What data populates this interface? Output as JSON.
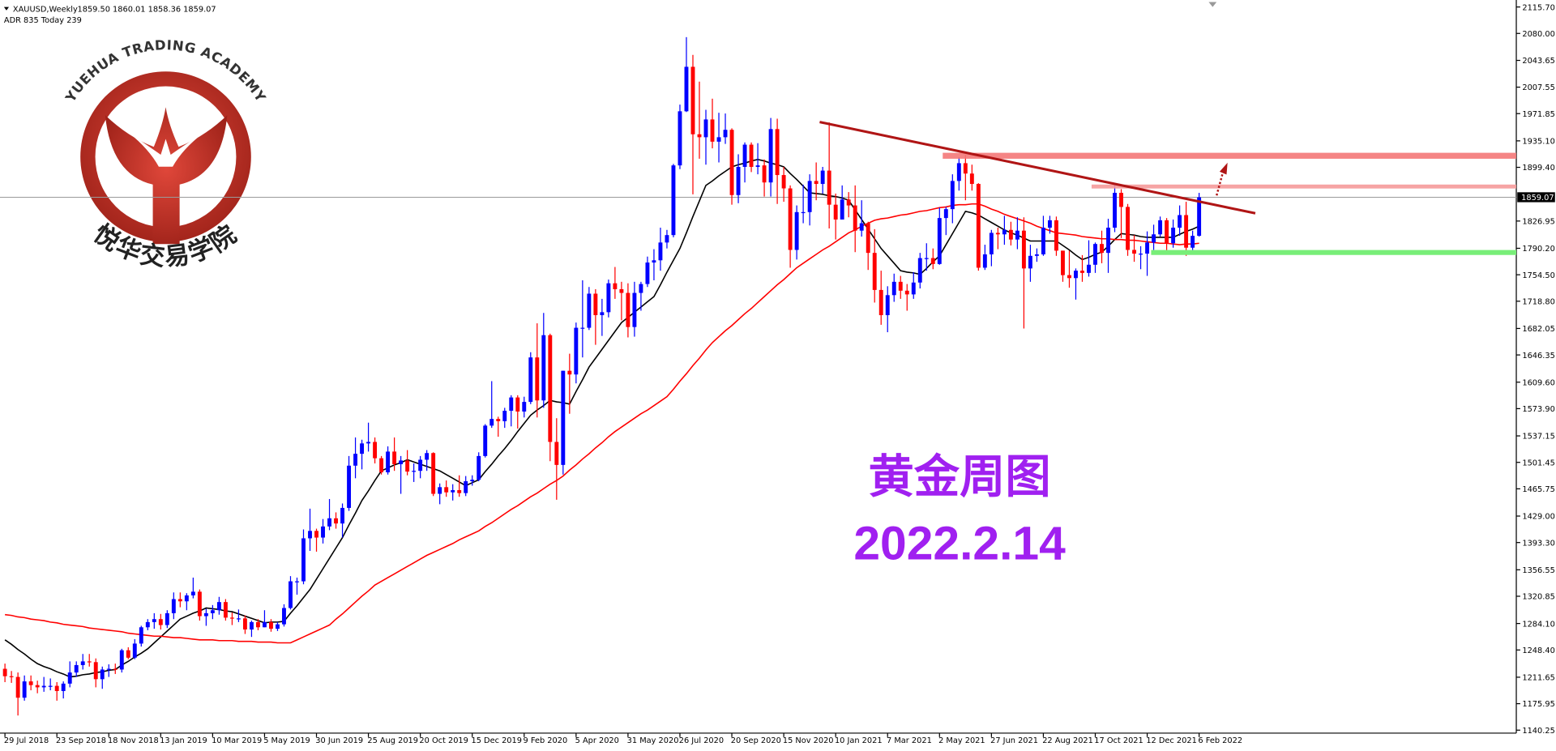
{
  "chart_data": {
    "type": "candlestick",
    "symbol": "XAUUSD,Weekly",
    "header_values": "1859.50 1860.01 1858.36 1859.07",
    "indicator_text": "ADR 835  Today 239",
    "title": "黄金周图",
    "subtitle": "2022.2.14",
    "up_color": "#0000ff",
    "down_color": "#ff0000",
    "last_price": 1859.07,
    "ylim": [
      1140.25,
      2115.7
    ],
    "yticks": [
      {
        "value": 2115.7,
        "label": "2115.70"
      },
      {
        "value": 2080,
        "label": "2080.00"
      },
      2043.65,
      2007.55,
      1971.85,
      {
        "value": 1935.1,
        "label": "1935.10"
      },
      {
        "value": 1899.4,
        "label": "1899.40"
      },
      1826.95,
      {
        "value": 1790.2,
        "label": "1790.20"
      },
      {
        "value": 1754.5,
        "label": "1754.50"
      },
      {
        "value": 1718.8,
        "label": "1718.80"
      },
      1682.05,
      1646.35,
      {
        "value": 1609.6,
        "label": "1609.60"
      },
      {
        "value": 1573.9,
        "label": "1573.90"
      },
      1537.15,
      1501.45,
      1465.75,
      {
        "value": 1429,
        "label": "1429.00"
      },
      {
        "value": 1393.3,
        "label": "1393.30"
      },
      1356.55,
      1320.85,
      {
        "value": 1284.1,
        "label": "1284.10"
      },
      {
        "value": 1248.4,
        "label": "1248.40"
      },
      1211.65,
      1175.95,
      1140.25
    ],
    "categories": [
      "29 Jul 2018",
      null,
      null,
      null,
      null,
      null,
      null,
      null,
      "23 Sep 2018",
      null,
      null,
      null,
      null,
      null,
      null,
      null,
      "18 Nov 2018",
      null,
      null,
      null,
      null,
      null,
      null,
      null,
      "13 Jan 2019",
      null,
      null,
      null,
      null,
      null,
      null,
      null,
      "10 Mar 2019",
      null,
      null,
      null,
      null,
      null,
      null,
      null,
      "5 May 2019",
      null,
      null,
      null,
      null,
      null,
      null,
      null,
      "30 Jun 2019",
      null,
      null,
      null,
      null,
      null,
      null,
      null,
      "25 Aug 2019",
      null,
      null,
      null,
      null,
      null,
      null,
      null,
      "20 Oct 2019",
      null,
      null,
      null,
      null,
      null,
      null,
      null,
      "15 Dec 2019",
      null,
      null,
      null,
      null,
      null,
      null,
      null,
      "9 Feb 2020",
      null,
      null,
      null,
      null,
      null,
      null,
      null,
      "5 Apr 2020",
      null,
      null,
      null,
      null,
      null,
      null,
      null,
      "31 May 2020",
      null,
      null,
      null,
      null,
      null,
      null,
      null,
      "26 Jul 2020",
      null,
      null,
      null,
      null,
      null,
      null,
      null,
      "20 Sep 2020",
      null,
      null,
      null,
      null,
      null,
      null,
      null,
      "15 Nov 2020",
      null,
      null,
      null,
      null,
      null,
      null,
      null,
      "10 Jan 2021",
      null,
      null,
      null,
      null,
      null,
      null,
      null,
      "7 Mar 2021",
      null,
      null,
      null,
      null,
      null,
      null,
      null,
      "2 May 2021",
      null,
      null,
      null,
      null,
      null,
      null,
      null,
      "27 Jun 2021",
      null,
      null,
      null,
      null,
      null,
      null,
      null,
      "22 Aug 2021",
      null,
      null,
      null,
      null,
      null,
      null,
      null,
      "17 Oct 2021",
      null,
      null,
      null,
      null,
      null,
      null,
      null,
      "12 Dec 2021",
      null,
      null,
      null,
      null,
      null,
      null,
      null,
      "6 Feb 2022"
    ],
    "open": [
      1223,
      1213,
      1212,
      1184,
      1206,
      1201,
      1198,
      1200,
      1200,
      1193,
      1203,
      1218,
      1228,
      1233,
      1232,
      1209,
      1222,
      1223,
      1222,
      1248,
      1238,
      1257,
      1279,
      1286,
      1290,
      1282,
      1298,
      1317,
      1314,
      1322,
      1327,
      1294,
      1298,
      1302,
      1313,
      1292,
      1291,
      1291,
      1276,
      1286,
      1279,
      1286,
      1277,
      1283,
      1305,
      1341,
      1341,
      1399,
      1409,
      1400,
      1415,
      1426,
      1419,
      1440,
      1497,
      1513,
      1527,
      1529,
      1507,
      1488,
      1516,
      1499,
      1504,
      1489,
      1490,
      1505,
      1514,
      1459,
      1468,
      1461,
      1464,
      1460,
      1476,
      1478,
      1510,
      1551,
      1560,
      1557,
      1571,
      1589,
      1570,
      1583,
      1643,
      1585,
      1673,
      1529,
      1498,
      1625,
      1620,
      1683,
      1683,
      1729,
      1700,
      1704,
      1743,
      1735,
      1730,
      1684,
      1730,
      1742,
      1771,
      1774,
      1798,
      1808,
      1902,
      1975,
      2035,
      1944,
      1940,
      1964,
      1934,
      1940,
      1950,
      1862,
      1900,
      1930,
      1900,
      1902,
      1879,
      1951,
      1889,
      1871,
      1788,
      1839,
      1839,
      1881,
      1877,
      1895,
      1849,
      1829,
      1856,
      1848,
      1814,
      1824,
      1784,
      1734,
      1700,
      1727,
      1745,
      1733,
      1728,
      1744,
      1777,
      1777,
      1769,
      1831,
      1843,
      1881,
      1905,
      1891,
      1877,
      1764,
      1782,
      1811,
      1809,
      1815,
      1802,
      1814,
      1763,
      1780,
      1782,
      1818,
      1828,
      1787,
      1754,
      1750,
      1760,
      1757,
      1768,
      1796,
      1784,
      1818,
      1865,
      1846,
      1788,
      1783,
      1783,
      1798,
      1809,
      1828,
      1797,
      1818,
      1835,
      1791,
      1807
    ],
    "high": [
      1230,
      1220,
      1218,
      1214,
      1214,
      1207,
      1212,
      1210,
      1205,
      1206,
      1233,
      1233,
      1243,
      1243,
      1237,
      1226,
      1229,
      1230,
      1250,
      1252,
      1263,
      1281,
      1290,
      1298,
      1297,
      1302,
      1326,
      1326,
      1325,
      1346,
      1330,
      1304,
      1309,
      1320,
      1317,
      1299,
      1303,
      1295,
      1288,
      1290,
      1302,
      1290,
      1286,
      1310,
      1348,
      1346,
      1411,
      1439,
      1412,
      1425,
      1452,
      1434,
      1446,
      1510,
      1535,
      1532,
      1555,
      1535,
      1510,
      1523,
      1535,
      1510,
      1518,
      1500,
      1510,
      1518,
      1515,
      1473,
      1477,
      1472,
      1484,
      1483,
      1484,
      1515,
      1553,
      1611,
      1563,
      1575,
      1592,
      1592,
      1590,
      1650,
      1689,
      1703,
      1675,
      1561,
      1625,
      1648,
      1690,
      1747,
      1738,
      1735,
      1722,
      1748,
      1765,
      1745,
      1743,
      1745,
      1745,
      1779,
      1789,
      1818,
      1815,
      1904,
      1984,
      2075,
      2051,
      2015,
      1977,
      1992,
      1973,
      1972,
      1952,
      1917,
      1933,
      1933,
      1932,
      1910,
      1966,
      1965,
      1900,
      1875,
      1848,
      1876,
      1890,
      1906,
      1900,
      1960,
      1864,
      1875,
      1866,
      1875,
      1855,
      1826,
      1816,
      1760,
      1739,
      1756,
      1753,
      1742,
      1758,
      1784,
      1797,
      1790,
      1845,
      1846,
      1890,
      1913,
      1916,
      1903,
      1878,
      1795,
      1815,
      1818,
      1834,
      1826,
      1832,
      1832,
      1795,
      1790,
      1834,
      1834,
      1833,
      1787,
      1787,
      1763,
      1781,
      1801,
      1798,
      1814,
      1830,
      1877,
      1870,
      1850,
      1808,
      1793,
      1813,
      1822,
      1833,
      1831,
      1829,
      1848,
      1853,
      1814,
      1865
    ],
    "low": [
      1205,
      1204,
      1160,
      1180,
      1194,
      1190,
      1192,
      1194,
      1180,
      1183,
      1198,
      1212,
      1222,
      1226,
      1198,
      1196,
      1212,
      1216,
      1218,
      1236,
      1236,
      1253,
      1275,
      1277,
      1276,
      1278,
      1290,
      1306,
      1302,
      1318,
      1288,
      1281,
      1290,
      1296,
      1288,
      1282,
      1286,
      1270,
      1266,
      1275,
      1279,
      1273,
      1274,
      1280,
      1303,
      1323,
      1337,
      1382,
      1381,
      1392,
      1410,
      1412,
      1400,
      1436,
      1480,
      1492,
      1516,
      1500,
      1485,
      1485,
      1490,
      1459,
      1484,
      1475,
      1480,
      1490,
      1456,
      1445,
      1455,
      1450,
      1455,
      1456,
      1470,
      1476,
      1508,
      1548,
      1536,
      1548,
      1550,
      1547,
      1562,
      1580,
      1562,
      1575,
      1503,
      1451,
      1485,
      1567,
      1608,
      1643,
      1680,
      1660,
      1672,
      1697,
      1722,
      1693,
      1670,
      1671,
      1706,
      1738,
      1747,
      1760,
      1790,
      1805,
      1897,
      1974,
      1863,
      1911,
      1903,
      1925,
      1906,
      1931,
      1849,
      1851,
      1879,
      1893,
      1890,
      1860,
      1860,
      1850,
      1853,
      1764,
      1775,
      1824,
      1821,
      1855,
      1864,
      1817,
      1802,
      1832,
      1832,
      1785,
      1806,
      1761,
      1717,
      1687,
      1677,
      1718,
      1722,
      1706,
      1722,
      1736,
      1760,
      1762,
      1768,
      1808,
      1824,
      1868,
      1855,
      1868,
      1760,
      1761,
      1766,
      1789,
      1795,
      1794,
      1789,
      1682,
      1745,
      1772,
      1780,
      1810,
      1780,
      1745,
      1737,
      1721,
      1745,
      1752,
      1757,
      1770,
      1757,
      1812,
      1804,
      1780,
      1772,
      1762,
      1753,
      1788,
      1806,
      1782,
      1791,
      1807,
      1780,
      1788,
      1806
    ],
    "close": [
      1213,
      1212,
      1184,
      1206,
      1201,
      1198,
      1200,
      1200,
      1193,
      1203,
      1218,
      1228,
      1233,
      1232,
      1209,
      1222,
      1223,
      1222,
      1248,
      1238,
      1257,
      1279,
      1286,
      1290,
      1282,
      1298,
      1317,
      1314,
      1322,
      1327,
      1294,
      1298,
      1302,
      1313,
      1292,
      1291,
      1291,
      1276,
      1286,
      1279,
      1286,
      1277,
      1283,
      1305,
      1341,
      1341,
      1399,
      1409,
      1400,
      1415,
      1426,
      1419,
      1440,
      1497,
      1513,
      1527,
      1529,
      1507,
      1488,
      1516,
      1499,
      1504,
      1489,
      1490,
      1505,
      1514,
      1459,
      1468,
      1461,
      1464,
      1460,
      1476,
      1478,
      1510,
      1551,
      1560,
      1557,
      1571,
      1589,
      1570,
      1583,
      1643,
      1585,
      1673,
      1529,
      1498,
      1625,
      1620,
      1683,
      1683,
      1729,
      1700,
      1704,
      1743,
      1735,
      1730,
      1684,
      1730,
      1742,
      1771,
      1774,
      1798,
      1808,
      1902,
      1975,
      2035,
      1944,
      1940,
      1964,
      1934,
      1940,
      1950,
      1862,
      1900,
      1930,
      1900,
      1902,
      1879,
      1951,
      1889,
      1871,
      1788,
      1839,
      1839,
      1881,
      1877,
      1895,
      1849,
      1829,
      1856,
      1848,
      1814,
      1824,
      1784,
      1734,
      1700,
      1727,
      1745,
      1733,
      1728,
      1744,
      1777,
      1777,
      1769,
      1831,
      1843,
      1881,
      1905,
      1891,
      1877,
      1764,
      1782,
      1811,
      1809,
      1815,
      1802,
      1814,
      1763,
      1780,
      1782,
      1818,
      1828,
      1787,
      1754,
      1750,
      1760,
      1757,
      1768,
      1796,
      1784,
      1818,
      1865,
      1846,
      1788,
      1783,
      1783,
      1798,
      1809,
      1828,
      1797,
      1818,
      1835,
      1791,
      1807,
      1859
    ],
    "overlays": [
      {
        "color": "#000000",
        "values": [
          1262,
          1256,
          1249,
          1243,
          1236,
          1230,
          1226,
          1223,
          1219,
          1216,
          1212,
          1213,
          1215,
          1216,
          1218,
          1219,
          1221,
          1222,
          1228,
          1233,
          1239,
          1244,
          1250,
          1258,
          1266,
          1274,
          1282,
          1290,
          1294,
          1298,
          1301,
          1305,
          1304,
          1303,
          1301,
          1300,
          1297,
          1294,
          1291,
          1288,
          1285,
          1286,
          1286,
          1287,
          1298,
          1308,
          1319,
          1330,
          1344,
          1358,
          1372,
          1386,
          1400,
          1417,
          1433,
          1450,
          1463,
          1477,
          1490,
          1494,
          1498,
          1501,
          1505,
          1502,
          1499,
          1496,
          1493,
          1490,
          1485,
          1480,
          1475,
          1470,
          1474,
          1478,
          1489,
          1499,
          1510,
          1520,
          1531,
          1543,
          1554,
          1565,
          1572,
          1578,
          1585,
          1583,
          1582,
          1580,
          1597,
          1613,
          1630,
          1642,
          1654,
          1666,
          1678,
          1690,
          1697,
          1704,
          1711,
          1718,
          1725,
          1741,
          1758,
          1774,
          1790,
          1811,
          1833,
          1854,
          1875,
          1881,
          1888,
          1894,
          1900,
          1903,
          1905,
          1908,
          1910,
          1908,
          1905,
          1903,
          1900,
          1891,
          1883,
          1874,
          1865,
          1864,
          1863,
          1861,
          1860,
          1858,
          1855,
          1842,
          1829,
          1816,
          1803,
          1790,
          1780,
          1770,
          1760,
          1758,
          1757,
          1755,
          1763,
          1772,
          1780,
          1795,
          1810,
          1825,
          1840,
          1838,
          1835,
          1830,
          1825,
          1820,
          1815,
          1811,
          1808,
          1804,
          1800,
          1800,
          1800,
          1800,
          1800,
          1794,
          1788,
          1781,
          1775,
          1778,
          1782,
          1785,
          1793,
          1802,
          1810,
          1809,
          1808,
          1806,
          1805,
          1805,
          1805,
          1805,
          1805,
          1809,
          1813,
          1816,
          1820
        ]
      },
      {
        "color": "#ff0000",
        "values": [
          1296,
          1295,
          1293,
          1292,
          1290,
          1289,
          1288,
          1286,
          1285,
          1283,
          1282,
          1281,
          1280,
          1278,
          1277,
          1276,
          1275,
          1274,
          1273,
          1271,
          1270,
          1269,
          1268,
          1267,
          1267,
          1266,
          1265,
          1265,
          1264,
          1263,
          1262,
          1262,
          1262,
          1261,
          1261,
          1261,
          1260,
          1260,
          1260,
          1259,
          1259,
          1259,
          1258,
          1258,
          1258,
          1262,
          1266,
          1270,
          1274,
          1278,
          1282,
          1290,
          1297,
          1305,
          1313,
          1321,
          1328,
          1336,
          1341,
          1346,
          1351,
          1356,
          1361,
          1366,
          1371,
          1376,
          1380,
          1384,
          1388,
          1392,
          1397,
          1401,
          1405,
          1409,
          1415,
          1420,
          1426,
          1432,
          1438,
          1443,
          1449,
          1455,
          1460,
          1466,
          1472,
          1477,
          1483,
          1491,
          1498,
          1506,
          1513,
          1521,
          1528,
          1536,
          1543,
          1549,
          1555,
          1561,
          1567,
          1572,
          1578,
          1584,
          1590,
          1600,
          1611,
          1621,
          1632,
          1642,
          1653,
          1663,
          1671,
          1679,
          1686,
          1694,
          1702,
          1709,
          1717,
          1725,
          1733,
          1741,
          1748,
          1756,
          1764,
          1770,
          1776,
          1782,
          1788,
          1793,
          1799,
          1805,
          1811,
          1815,
          1820,
          1824,
          1828,
          1830,
          1831,
          1833,
          1835,
          1836,
          1838,
          1840,
          1841,
          1843,
          1845,
          1846,
          1848,
          1849,
          1849,
          1850,
          1850,
          1847,
          1843,
          1840,
          1836,
          1833,
          1830,
          1827,
          1824,
          1820,
          1817,
          1814,
          1811,
          1810,
          1809,
          1808,
          1806,
          1805,
          1804,
          1803,
          1803,
          1802,
          1802,
          1801,
          1801,
          1800,
          1799,
          1798,
          1797,
          1797,
          1796,
          1795,
          1796,
          1796,
          1797
        ]
      }
    ]
  },
  "logo": {
    "top_text": "YUEHUA TRADING ACADEMY",
    "bottom_text": "悦华交易学院"
  }
}
